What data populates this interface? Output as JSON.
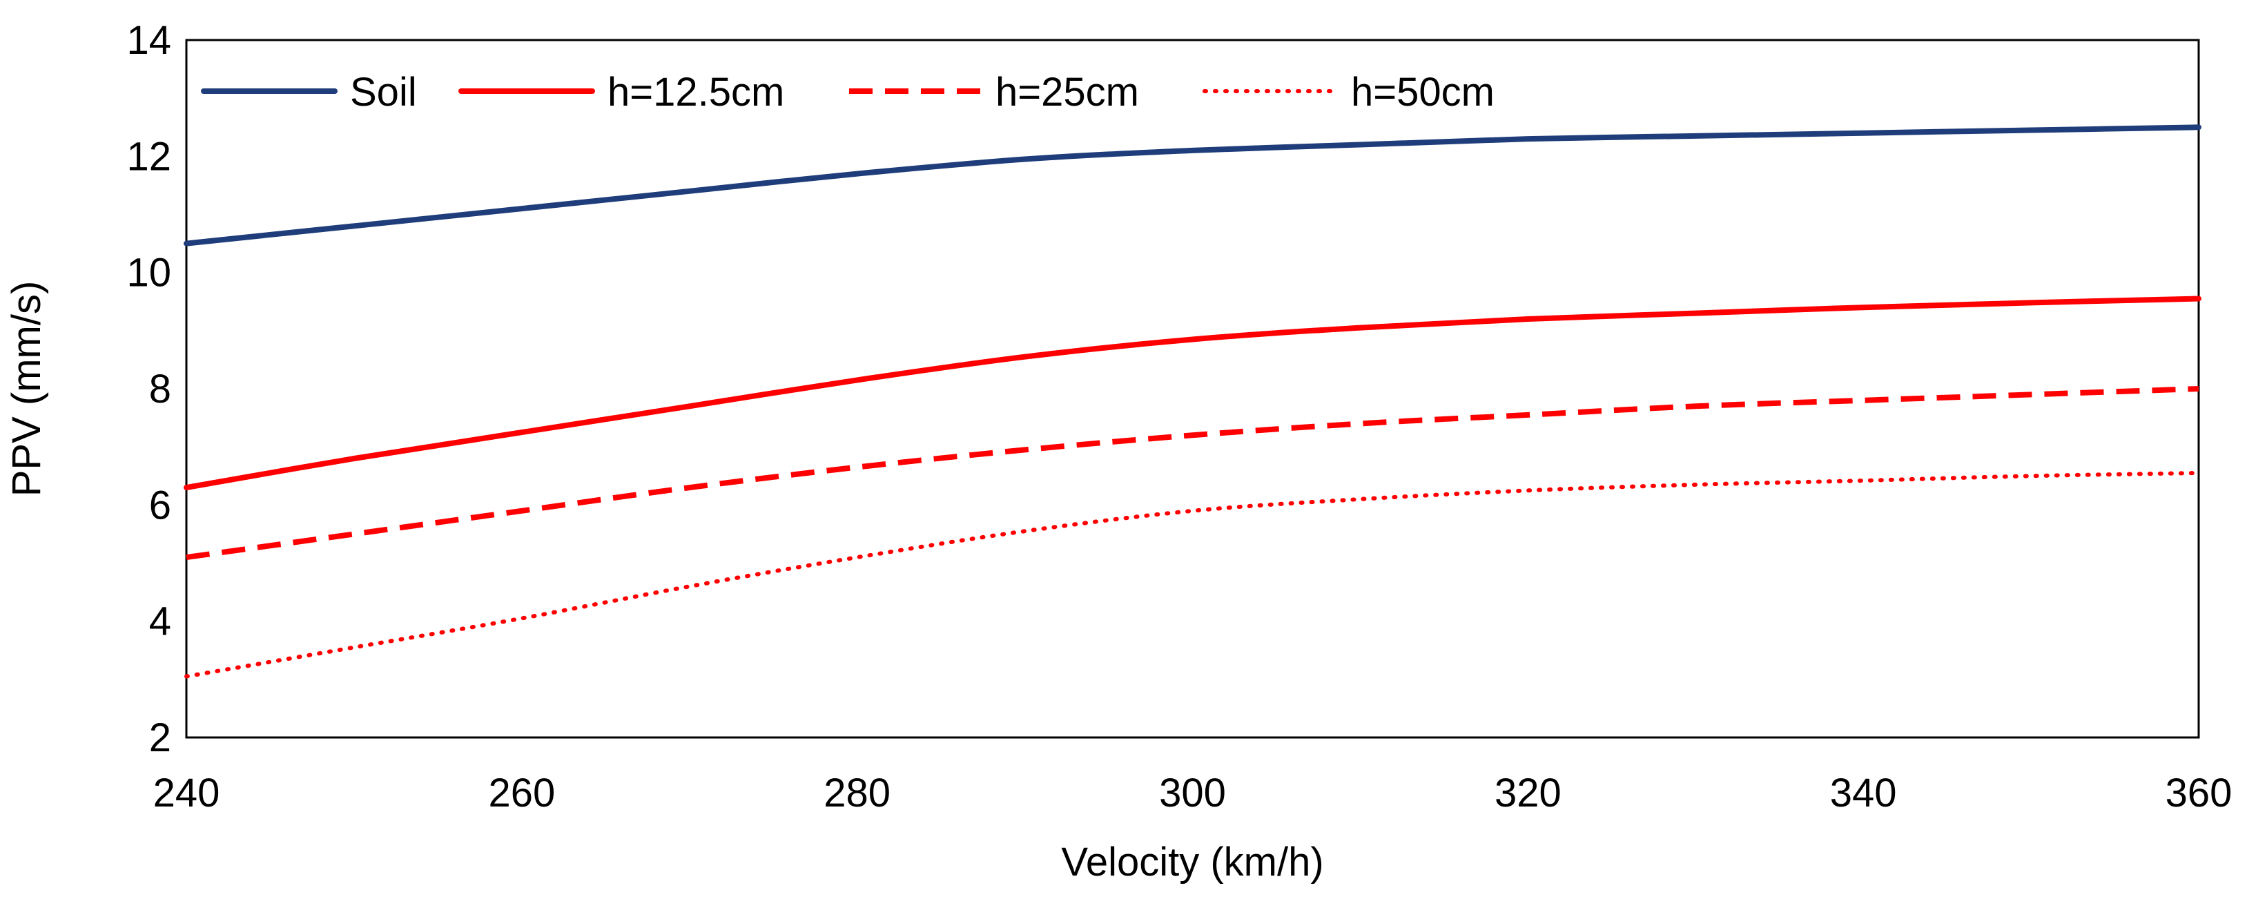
{
  "chart_data": {
    "type": "line",
    "title": "",
    "xlabel": "Velocity (km/h)",
    "ylabel": "PPV (mm/s)",
    "xlim": [
      240,
      360
    ],
    "ylim": [
      2,
      14
    ],
    "x_ticks": [
      240,
      260,
      280,
      300,
      320,
      340,
      360
    ],
    "y_ticks": [
      2,
      4,
      6,
      8,
      10,
      12,
      14
    ],
    "grid": false,
    "legend_position": "top-left",
    "x": [
      240,
      250,
      260,
      270,
      280,
      290,
      300,
      310,
      320,
      330,
      340,
      350,
      360
    ],
    "series": [
      {
        "name": "Soil",
        "color": "#1f3d7a",
        "dash": "solid",
        "values": [
          10.5,
          10.8,
          11.1,
          11.4,
          11.7,
          11.95,
          12.1,
          12.2,
          12.3,
          12.35,
          12.4,
          12.45,
          12.5
        ]
      },
      {
        "name": "h=12.5cm",
        "color": "#ff0000",
        "dash": "solid",
        "values": [
          6.3,
          6.8,
          7.25,
          7.7,
          8.15,
          8.55,
          8.85,
          9.05,
          9.2,
          9.3,
          9.4,
          9.48,
          9.55
        ]
      },
      {
        "name": "h=25cm",
        "color": "#ff0000",
        "dash": "dashed",
        "values": [
          5.1,
          5.5,
          5.9,
          6.3,
          6.65,
          6.95,
          7.2,
          7.4,
          7.55,
          7.7,
          7.8,
          7.9,
          8.0
        ]
      },
      {
        "name": "h=50cm",
        "color": "#ff0000",
        "dash": "dotted",
        "values": [
          3.05,
          3.55,
          4.05,
          4.6,
          5.1,
          5.55,
          5.9,
          6.1,
          6.25,
          6.35,
          6.42,
          6.5,
          6.55
        ]
      }
    ]
  }
}
